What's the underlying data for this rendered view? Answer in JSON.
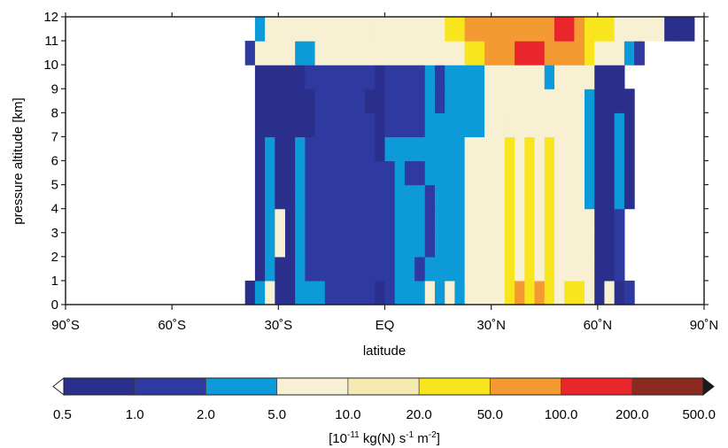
{
  "chart_data": {
    "type": "heatmap",
    "title": "",
    "xlabel": "latitude",
    "ylabel": "pressure altitude [km]",
    "x_ticks": [
      "90˚S",
      "60˚S",
      "30˚S",
      "EQ",
      "30˚N",
      "60˚N",
      "90˚N"
    ],
    "y_ticks": [
      "0",
      "1",
      "2",
      "3",
      "4",
      "5",
      "6",
      "7",
      "8",
      "9",
      "10",
      "11",
      "12"
    ],
    "xlim": [
      -90,
      90
    ],
    "ylim": [
      0,
      12
    ],
    "lat_step_deg": 2.8125,
    "alt_step_km": 1,
    "colorbar": {
      "label": "[10⁻¹¹ kg(N) s⁻¹ m⁻²]",
      "label_base": "[10",
      "label_exp1": "-11",
      "label_mid": " kg(N) s",
      "label_exp2": "-1",
      "label_mid2": " m",
      "label_exp3": "-2",
      "label_end": "]",
      "bounds": [
        "0.5",
        "1.0",
        "2.0",
        "5.0",
        "10.0",
        "20.0",
        "50.0",
        "100.0",
        "200.0",
        "500.0"
      ],
      "colors": [
        "#2b2f8c",
        "#2e3aa0",
        "#0d9ad8",
        "#f7f0d2",
        "#f5eab4",
        "#f9e51e",
        "#f39a32",
        "#e8262c",
        "#8b2a1e"
      ],
      "under_color": "#ffffff",
      "over_color": "#1a1a1a"
    },
    "levels": [
      {
        "alt": [
          0,
          1
        ],
        "runs": [
          [
            -39.4,
            -36.6,
            0
          ],
          [
            -36.6,
            -33.8,
            2
          ],
          [
            -33.8,
            -31.0,
            3
          ],
          [
            -31.0,
            -25.3,
            0
          ],
          [
            -25.3,
            -16.9,
            2
          ],
          [
            -16.9,
            -2.8,
            1
          ],
          [
            -2.8,
            0.0,
            0
          ],
          [
            0.0,
            2.8,
            1
          ],
          [
            2.8,
            11.3,
            2
          ],
          [
            11.3,
            14.1,
            3
          ],
          [
            14.1,
            16.9,
            2
          ],
          [
            16.9,
            19.7,
            3
          ],
          [
            19.7,
            22.5,
            2
          ],
          [
            22.5,
            33.8,
            3
          ],
          [
            33.8,
            36.6,
            5
          ],
          [
            36.6,
            39.4,
            6
          ],
          [
            39.4,
            42.2,
            5
          ],
          [
            42.2,
            45.0,
            6
          ],
          [
            45.0,
            47.8,
            5
          ],
          [
            47.8,
            50.6,
            3
          ],
          [
            50.6,
            56.3,
            5
          ],
          [
            56.3,
            59.1,
            3
          ],
          [
            59.1,
            61.9,
            0
          ],
          [
            61.9,
            64.7,
            3
          ],
          [
            64.7,
            67.5,
            0
          ],
          [
            67.5,
            70.3,
            1
          ]
        ]
      },
      {
        "alt": [
          1,
          2
        ],
        "runs": [
          [
            -36.6,
            -33.8,
            0
          ],
          [
            -33.8,
            -31.0,
            2
          ],
          [
            -31.0,
            -25.3,
            0
          ],
          [
            -25.3,
            -22.5,
            2
          ],
          [
            -22.5,
            2.8,
            1
          ],
          [
            2.8,
            8.4,
            2
          ],
          [
            8.4,
            11.3,
            1
          ],
          [
            11.3,
            22.5,
            2
          ],
          [
            22.5,
            33.8,
            3
          ],
          [
            33.8,
            36.6,
            5
          ],
          [
            36.6,
            39.4,
            3
          ],
          [
            39.4,
            42.2,
            5
          ],
          [
            42.2,
            45.0,
            3
          ],
          [
            45.0,
            47.8,
            5
          ],
          [
            47.8,
            56.3,
            3
          ],
          [
            56.3,
            59.1,
            3
          ],
          [
            59.1,
            64.7,
            0
          ],
          [
            64.7,
            67.5,
            1
          ]
        ]
      },
      {
        "alt": [
          2,
          3
        ],
        "runs": [
          [
            -36.6,
            -33.8,
            0
          ],
          [
            -33.8,
            -31.0,
            2
          ],
          [
            -31.0,
            -28.1,
            3
          ],
          [
            -28.1,
            -25.3,
            0
          ],
          [
            -25.3,
            -22.5,
            2
          ],
          [
            -22.5,
            2.8,
            1
          ],
          [
            2.8,
            11.3,
            2
          ],
          [
            11.3,
            14.1,
            1
          ],
          [
            14.1,
            22.5,
            2
          ],
          [
            22.5,
            33.8,
            3
          ],
          [
            33.8,
            36.6,
            5
          ],
          [
            36.6,
            39.4,
            3
          ],
          [
            39.4,
            42.2,
            5
          ],
          [
            42.2,
            45.0,
            3
          ],
          [
            45.0,
            47.8,
            5
          ],
          [
            47.8,
            56.3,
            3
          ],
          [
            56.3,
            59.1,
            3
          ],
          [
            59.1,
            64.7,
            0
          ],
          [
            64.7,
            67.5,
            1
          ]
        ]
      },
      {
        "alt": [
          3,
          4
        ],
        "runs": [
          [
            -36.6,
            -33.8,
            0
          ],
          [
            -33.8,
            -31.0,
            2
          ],
          [
            -31.0,
            -28.1,
            3
          ],
          [
            -28.1,
            -25.3,
            0
          ],
          [
            -25.3,
            -22.5,
            2
          ],
          [
            -22.5,
            2.8,
            1
          ],
          [
            2.8,
            11.3,
            2
          ],
          [
            11.3,
            14.1,
            1
          ],
          [
            14.1,
            22.5,
            2
          ],
          [
            22.5,
            33.8,
            3
          ],
          [
            33.8,
            36.6,
            5
          ],
          [
            36.6,
            39.4,
            3
          ],
          [
            39.4,
            42.2,
            5
          ],
          [
            42.2,
            45.0,
            3
          ],
          [
            45.0,
            47.8,
            5
          ],
          [
            47.8,
            56.3,
            3
          ],
          [
            56.3,
            59.1,
            3
          ],
          [
            59.1,
            64.7,
            0
          ],
          [
            64.7,
            67.5,
            1
          ]
        ]
      },
      {
        "alt": [
          4,
          5
        ],
        "runs": [
          [
            -36.6,
            -33.8,
            0
          ],
          [
            -33.8,
            -31.0,
            2
          ],
          [
            -31.0,
            -28.1,
            0
          ],
          [
            -28.1,
            -25.3,
            0
          ],
          [
            -25.3,
            -22.5,
            2
          ],
          [
            -22.5,
            2.8,
            1
          ],
          [
            2.8,
            11.3,
            2
          ],
          [
            11.3,
            14.1,
            1
          ],
          [
            14.1,
            22.5,
            2
          ],
          [
            22.5,
            33.8,
            3
          ],
          [
            33.8,
            36.6,
            5
          ],
          [
            36.6,
            39.4,
            3
          ],
          [
            39.4,
            42.2,
            5
          ],
          [
            42.2,
            45.0,
            3
          ],
          [
            45.0,
            47.8,
            5
          ],
          [
            47.8,
            56.3,
            3
          ],
          [
            56.3,
            59.1,
            2
          ],
          [
            59.1,
            64.7,
            0
          ],
          [
            64.7,
            67.5,
            2
          ],
          [
            67.5,
            70.3,
            0
          ]
        ]
      },
      {
        "alt": [
          5,
          6
        ],
        "runs": [
          [
            -36.6,
            -33.8,
            0
          ],
          [
            -33.8,
            -31.0,
            2
          ],
          [
            -31.0,
            -25.3,
            0
          ],
          [
            -25.3,
            -22.5,
            2
          ],
          [
            -22.5,
            2.8,
            1
          ],
          [
            2.8,
            5.6,
            2
          ],
          [
            5.6,
            11.3,
            1
          ],
          [
            11.3,
            22.5,
            2
          ],
          [
            22.5,
            33.8,
            3
          ],
          [
            33.8,
            36.6,
            5
          ],
          [
            36.6,
            39.4,
            3
          ],
          [
            39.4,
            42.2,
            5
          ],
          [
            42.2,
            45.0,
            3
          ],
          [
            45.0,
            47.8,
            5
          ],
          [
            47.8,
            56.3,
            3
          ],
          [
            56.3,
            59.1,
            2
          ],
          [
            59.1,
            64.7,
            0
          ],
          [
            64.7,
            67.5,
            2
          ],
          [
            67.5,
            70.3,
            0
          ]
        ]
      },
      {
        "alt": [
          6,
          7
        ],
        "runs": [
          [
            -36.6,
            -33.8,
            0
          ],
          [
            -33.8,
            -31.0,
            2
          ],
          [
            -31.0,
            -25.3,
            0
          ],
          [
            -25.3,
            -22.5,
            2
          ],
          [
            -22.5,
            -16.9,
            1
          ],
          [
            -16.9,
            -8.4,
            1
          ],
          [
            -8.4,
            -2.8,
            1
          ],
          [
            -2.8,
            0.0,
            0
          ],
          [
            0.0,
            11.3,
            2
          ],
          [
            11.3,
            19.7,
            2
          ],
          [
            19.7,
            22.5,
            2
          ],
          [
            22.5,
            33.8,
            3
          ],
          [
            33.8,
            36.6,
            5
          ],
          [
            36.6,
            39.4,
            3
          ],
          [
            39.4,
            42.2,
            5
          ],
          [
            42.2,
            45.0,
            3
          ],
          [
            45.0,
            47.8,
            5
          ],
          [
            47.8,
            56.3,
            3
          ],
          [
            56.3,
            59.1,
            2
          ],
          [
            59.1,
            64.7,
            0
          ],
          [
            64.7,
            67.5,
            2
          ],
          [
            67.5,
            70.3,
            0
          ]
        ]
      },
      {
        "alt": [
          7,
          8
        ],
        "runs": [
          [
            -36.6,
            -31.0,
            0
          ],
          [
            -31.0,
            -28.1,
            0
          ],
          [
            -28.1,
            -25.3,
            0
          ],
          [
            -25.3,
            -19.7,
            0
          ],
          [
            -19.7,
            -11.3,
            1
          ],
          [
            -11.3,
            -2.8,
            1
          ],
          [
            -2.8,
            0.0,
            0
          ],
          [
            0.0,
            11.3,
            1
          ],
          [
            11.3,
            16.9,
            2
          ],
          [
            16.9,
            28.1,
            2
          ],
          [
            28.1,
            33.8,
            3
          ],
          [
            33.8,
            36.6,
            3
          ],
          [
            36.6,
            50.6,
            3
          ],
          [
            50.6,
            56.3,
            3
          ],
          [
            56.3,
            59.1,
            2
          ],
          [
            59.1,
            64.7,
            0
          ],
          [
            64.7,
            67.5,
            2
          ],
          [
            67.5,
            70.3,
            0
          ]
        ]
      },
      {
        "alt": [
          8,
          9
        ],
        "runs": [
          [
            -36.6,
            -31.0,
            0
          ],
          [
            -31.0,
            -28.1,
            0
          ],
          [
            -28.1,
            -25.3,
            0
          ],
          [
            -25.3,
            -19.7,
            0
          ],
          [
            -19.7,
            -14.1,
            1
          ],
          [
            -14.1,
            -5.6,
            1
          ],
          [
            -5.6,
            0.0,
            0
          ],
          [
            0.0,
            11.3,
            1
          ],
          [
            11.3,
            14.1,
            2
          ],
          [
            14.1,
            16.9,
            1
          ],
          [
            16.9,
            28.1,
            2
          ],
          [
            28.1,
            50.6,
            3
          ],
          [
            50.6,
            56.3,
            3
          ],
          [
            56.3,
            59.1,
            2
          ],
          [
            59.1,
            64.7,
            0
          ],
          [
            64.7,
            67.5,
            0
          ],
          [
            67.5,
            70.3,
            0
          ]
        ]
      },
      {
        "alt": [
          9,
          10
        ],
        "runs": [
          [
            -36.6,
            -28.1,
            0
          ],
          [
            -28.1,
            -22.5,
            0
          ],
          [
            -22.5,
            -16.9,
            1
          ],
          [
            -16.9,
            -11.3,
            1
          ],
          [
            -11.3,
            -2.8,
            1
          ],
          [
            -2.8,
            0.0,
            0
          ],
          [
            0.0,
            11.3,
            1
          ],
          [
            11.3,
            14.1,
            2
          ],
          [
            14.1,
            16.9,
            1
          ],
          [
            16.9,
            28.1,
            2
          ],
          [
            28.1,
            45.0,
            3
          ],
          [
            45.0,
            47.8,
            2
          ],
          [
            47.8,
            56.3,
            3
          ],
          [
            56.3,
            59.1,
            3
          ],
          [
            59.1,
            64.7,
            0
          ],
          [
            64.7,
            67.5,
            0
          ]
        ]
      },
      {
        "alt": [
          10,
          11
        ],
        "runs": [
          [
            -39.4,
            -36.6,
            1
          ],
          [
            -36.6,
            -33.8,
            3
          ],
          [
            -33.8,
            -25.3,
            3
          ],
          [
            -25.3,
            -19.7,
            2
          ],
          [
            -19.7,
            22.5,
            3
          ],
          [
            22.5,
            28.1,
            5
          ],
          [
            28.1,
            36.6,
            6
          ],
          [
            36.6,
            45.0,
            7
          ],
          [
            45.0,
            50.6,
            6
          ],
          [
            50.6,
            56.3,
            6
          ],
          [
            56.3,
            59.1,
            5
          ],
          [
            59.1,
            61.9,
            3
          ],
          [
            61.9,
            64.7,
            3
          ],
          [
            64.7,
            67.5,
            3
          ],
          [
            67.5,
            70.3,
            2
          ],
          [
            70.3,
            73.1,
            1
          ]
        ]
      },
      {
        "alt": [
          11,
          12
        ],
        "runs": [
          [
            -36.6,
            -33.8,
            2
          ],
          [
            -33.8,
            -28.1,
            3
          ],
          [
            -28.1,
            -2.8,
            3
          ],
          [
            -2.8,
            16.9,
            3
          ],
          [
            16.9,
            22.5,
            5
          ],
          [
            22.5,
            36.6,
            6
          ],
          [
            36.6,
            47.8,
            6
          ],
          [
            47.8,
            53.4,
            7
          ],
          [
            53.4,
            56.3,
            6
          ],
          [
            56.3,
            64.7,
            5
          ],
          [
            64.7,
            70.3,
            3
          ],
          [
            70.3,
            73.1,
            3
          ],
          [
            73.1,
            78.8,
            3
          ],
          [
            78.8,
            81.6,
            0
          ],
          [
            81.6,
            87.2,
            0
          ]
        ]
      }
    ]
  }
}
